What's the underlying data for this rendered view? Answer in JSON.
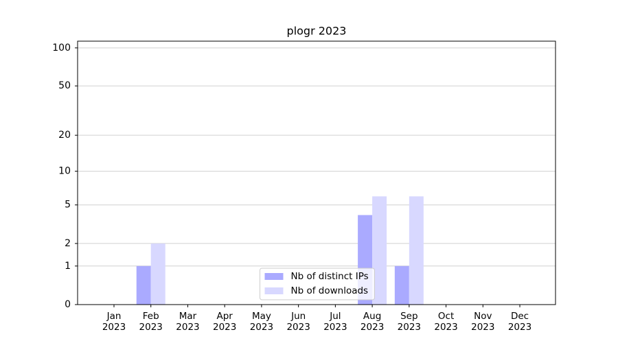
{
  "chart_data": {
    "type": "bar",
    "title": "plogr 2023",
    "categories": [
      "Jan\n2023",
      "Feb\n2023",
      "Mar\n2023",
      "Apr\n2023",
      "May\n2023",
      "Jun\n2023",
      "Jul\n2023",
      "Aug\n2023",
      "Sep\n2023",
      "Oct\n2023",
      "Nov\n2023",
      "Dec\n2023"
    ],
    "series": [
      {
        "name": "Nb of distinct IPs",
        "color": "#aaaaff",
        "values": [
          0,
          1,
          0,
          0,
          0,
          0,
          0,
          4,
          1,
          0,
          0,
          0
        ]
      },
      {
        "name": "Nb of downloads",
        "color": "#d8d8ff",
        "values": [
          0,
          2,
          0,
          0,
          0,
          0,
          0,
          6,
          6,
          0,
          0,
          0
        ]
      }
    ],
    "yscale": "log1p",
    "ylim": [
      0,
      113
    ],
    "yticks": [
      0,
      1,
      2,
      5,
      10,
      20,
      50,
      100
    ],
    "grid": true,
    "legend": "lower center"
  }
}
